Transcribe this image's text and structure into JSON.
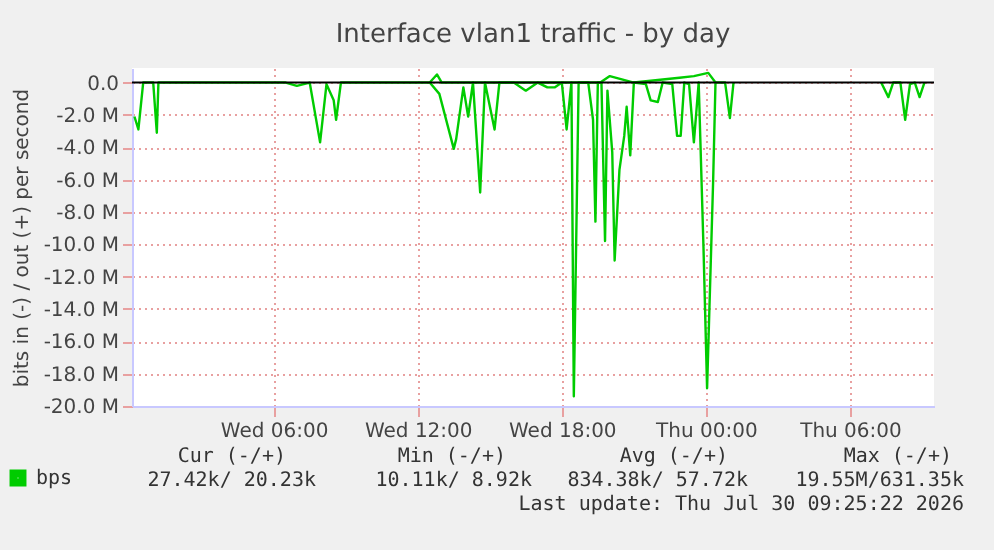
{
  "chart_data": {
    "type": "line",
    "title": "Interface vlan1 traffic - by day",
    "ylabel": "bits in (-) / out (+) per second",
    "xlim": [
      "2026-07-29T00:06",
      "2026-07-30T09:30"
    ],
    "xticks": [
      {
        "value": "2026-07-29T06:00",
        "label": "Wed 06:00"
      },
      {
        "value": "2026-07-29T12:00",
        "label": "Wed 12:00"
      },
      {
        "value": "2026-07-29T18:00",
        "label": "Wed 18:00"
      },
      {
        "value": "2026-07-30T00:00",
        "label": "Thu 00:00"
      },
      {
        "value": "2026-07-30T06:00",
        "label": "Thu 06:00"
      }
    ],
    "ylim": [
      -20,
      0.9
    ],
    "yticks": [
      {
        "value": 0,
        "label": "0.0"
      },
      {
        "value": -2,
        "label": "-2.0 M"
      },
      {
        "value": -4,
        "label": "-4.0 M"
      },
      {
        "value": -6,
        "label": "-6.0 M"
      },
      {
        "value": -8,
        "label": "-8.0 M"
      },
      {
        "value": -10,
        "label": "-10.0 M"
      },
      {
        "value": -12,
        "label": "-12.0 M"
      },
      {
        "value": -14,
        "label": "-14.0 M"
      },
      {
        "value": -16,
        "label": "-16.0 M"
      },
      {
        "value": -18,
        "label": "-18.0 M"
      },
      {
        "value": -20,
        "label": "-20.0 M"
      }
    ],
    "grid": true,
    "legend": "bottom left",
    "marker": "none",
    "line_style": "solid",
    "ref_lines": [
      {
        "axis": "y",
        "value": 0,
        "color": "#000000"
      }
    ],
    "series": [
      {
        "name": "bps",
        "color": "#00cc00",
        "x": [
          "2026-07-29T00:12",
          "2026-07-29T00:22",
          "2026-07-29T00:34",
          "2026-07-29T00:59",
          "2026-07-29T01:08",
          "2026-07-29T01:12",
          "2026-07-29T06:30",
          "2026-07-29T06:58",
          "2026-07-29T07:30",
          "2026-07-29T07:56",
          "2026-07-29T08:12",
          "2026-07-29T08:30",
          "2026-07-29T08:36",
          "2026-07-29T08:48",
          "2026-07-29T12:30",
          "2026-07-29T12:54",
          "2026-07-29T13:30",
          "2026-07-29T13:36",
          "2026-07-29T13:54",
          "2026-07-29T14:06",
          "2026-07-29T14:18",
          "2026-07-29T14:36",
          "2026-07-29T14:48",
          "2026-07-29T15:12",
          "2026-07-29T15:24",
          "2026-07-29T16:00",
          "2026-07-29T16:30",
          "2026-07-29T17:00",
          "2026-07-29T17:24",
          "2026-07-29T17:42",
          "2026-07-29T18:00",
          "2026-07-29T18:12",
          "2026-07-29T18:24",
          "2026-07-29T18:30",
          "2026-07-29T18:42",
          "2026-07-29T19:06",
          "2026-07-29T19:18",
          "2026-07-29T19:24",
          "2026-07-29T19:30",
          "2026-07-29T19:39",
          "2026-07-29T19:48",
          "2026-07-29T19:54",
          "2026-07-29T20:06",
          "2026-07-29T20:12",
          "2026-07-29T20:24",
          "2026-07-29T20:36",
          "2026-07-29T20:42",
          "2026-07-29T20:51",
          "2026-07-29T21:00",
          "2026-07-29T21:30",
          "2026-07-29T21:42",
          "2026-07-29T22:00",
          "2026-07-29T22:12",
          "2026-07-29T22:36",
          "2026-07-29T22:48",
          "2026-07-29T22:57",
          "2026-07-29T23:06",
          "2026-07-29T23:18",
          "2026-07-29T23:30",
          "2026-07-29T23:42",
          "2026-07-29T23:54",
          "2026-07-30T00:03",
          "2026-07-30T00:18",
          "2026-07-30T00:24",
          "2026-07-30T00:48",
          "2026-07-30T01:00",
          "2026-07-30T01:09",
          "2026-07-30T01:30",
          "2026-07-30T07:18",
          "2026-07-30T07:36",
          "2026-07-30T07:48",
          "2026-07-30T08:06",
          "2026-07-30T08:18",
          "2026-07-30T08:30",
          "2026-07-30T08:42",
          "2026-07-30T08:54",
          "2026-07-30T09:06"
        ],
        "values": [
          -2.1,
          -2.9,
          0,
          0,
          -3.1,
          0,
          0,
          -0.2,
          0,
          -3.7,
          -0.1,
          -1.1,
          -2.3,
          0,
          0,
          -0.7,
          -4.1,
          -3.5,
          -0.3,
          -2.1,
          0,
          -6.8,
          0,
          -2.9,
          0,
          0,
          -0.5,
          0,
          -0.3,
          -0.3,
          0,
          -2.9,
          0,
          -19.4,
          0,
          0,
          -2.3,
          -8.6,
          0,
          0,
          -9.8,
          -0.5,
          -4.3,
          -11.0,
          -5.4,
          -3.3,
          -1.5,
          -4.5,
          0,
          -0.1,
          -1.1,
          -1.2,
          0,
          -0.1,
          -3.3,
          -3.3,
          0,
          -0.1,
          -3.7,
          0,
          -10.2,
          -18.9,
          -6.2,
          0,
          0,
          -2.2,
          0,
          null,
          0,
          -0.9,
          0,
          0,
          -2.3,
          -0.1,
          0,
          -0.9,
          0
        ]
      },
      {
        "color": "#00cc00",
        "x": [
          "2026-07-29T12:30",
          "2026-07-29T12:48",
          "2026-07-29T13:00",
          "2026-07-29T19:36",
          "2026-07-29T20:00",
          "2026-07-29T20:30",
          "2026-07-29T21:00",
          "2026-07-29T22:54",
          "2026-07-29T23:30",
          "2026-07-30T00:06",
          "2026-07-30T00:24"
        ],
        "values": [
          0,
          0.5,
          0,
          0,
          0.4,
          0.2,
          0,
          0.3,
          0.4,
          0.6,
          0
        ]
      }
    ],
    "annotations": [
      "Cur (-/+)",
      "Min (-/+)",
      "Avg (-/+)",
      "Max (-/+)",
      "27.42k/ 20.23k",
      "10.11k/  8.92k",
      "834.38k/ 57.72k",
      "19.55M/631.35k",
      "Last update: Thu Jul 30 09:25:22 2026"
    ]
  }
}
